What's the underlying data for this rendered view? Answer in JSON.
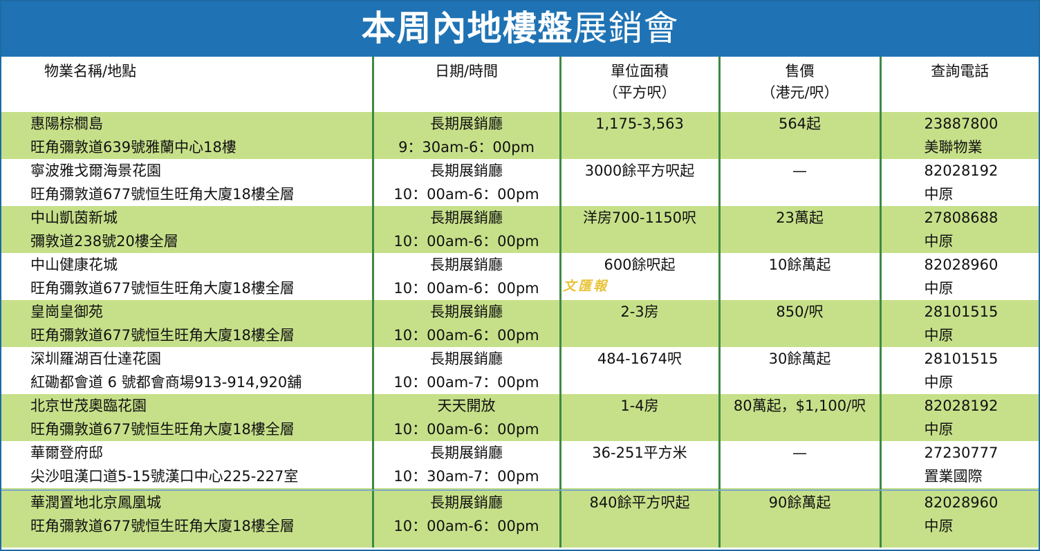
{
  "title": {
    "bold": "本周內地樓盤",
    "light": "展銷會"
  },
  "headers": {
    "name": "物業名稱/地點",
    "date": "日期/時間",
    "area_l1": "單位面積",
    "area_l2": "（平方呎）",
    "price_l1": "售價",
    "price_l2": "（港元/呎）",
    "phone": "查詢電話"
  },
  "rows": [
    {
      "name": "惠陽棕櫚島",
      "address": "旺角彌敦道639號雅蘭中心18樓",
      "venue": "長期展銷廳",
      "time": "9：30am-6：00pm",
      "area": "1,175-3,563",
      "price": "564起",
      "phone": "23887800",
      "agent": "美聯物業"
    },
    {
      "name": "寧波雅戈爾海景花園",
      "address": "旺角彌敦道677號恒生旺角大廈18樓全層",
      "venue": "長期展銷廳",
      "time": "10：00am-6：00pm",
      "area": "3000餘平方呎起",
      "price": "—",
      "phone": "82028192",
      "agent": "中原"
    },
    {
      "name": "中山凱茵新城",
      "address": "彌敦道238號20樓全層",
      "venue": "長期展銷廳",
      "time": "10：00am-6：00pm",
      "area": "洋房700-1150呎",
      "price": "23萬起",
      "phone": "27808688",
      "agent": "中原"
    },
    {
      "name": "中山健康花城",
      "address": "旺角彌敦道677號恒生旺角大廈18樓全層",
      "venue": "長期展銷廳",
      "time": "10：00am-6：00pm",
      "area": "600餘呎起",
      "price": "10餘萬起",
      "phone": "82028960",
      "agent": "中原"
    },
    {
      "name": "皇崗皇御苑",
      "address": "旺角彌敦道677號恒生旺角大廈18樓全層",
      "venue": "長期展銷廳",
      "time": "10：00am-6：00pm",
      "area": "2-3房",
      "price": "850/呎",
      "phone": "28101515",
      "agent": "中原"
    },
    {
      "name": "深圳羅湖百仕達花園",
      "address": "紅磡都會道 6 號都會商場913-914,920舖",
      "venue": "長期展銷廳",
      "time": "10：00am-7：00pm",
      "area": "484-1674呎",
      "price": "30餘萬起",
      "phone": "28101515",
      "agent": "中原"
    },
    {
      "name": "北京世茂奧臨花園",
      "address": "旺角彌敦道677號恒生旺角大廈18樓全層",
      "venue": "天天開放",
      "time": "10：00am-6：00pm",
      "area": "1-4房",
      "price": "80萬起，$1,100/呎",
      "phone": "82028192",
      "agent": "中原"
    },
    {
      "name": "華爾登府邸",
      "address": "尖沙咀漢口道5-15號漢口中心225-227室",
      "venue": "長期展銷廳",
      "time": "10：30am-7：00pm",
      "area": "36-251平方米",
      "price": "—",
      "phone": "27230777",
      "agent": "置業國際"
    },
    {
      "name": "華潤置地北京鳳凰城",
      "address": "旺角彌敦道677號恒生旺角大廈18樓全層",
      "venue": "長期展銷廳",
      "time": "10：00am-6：00pm",
      "area": "840餘平方呎起",
      "price": "90餘萬起",
      "phone": "82028960",
      "agent": "中原"
    }
  ],
  "watermark": "文匯報",
  "colors": {
    "title_bg": "#1f73b4",
    "row_shade": "#c6e089",
    "column_divider": "#3c8a42"
  }
}
